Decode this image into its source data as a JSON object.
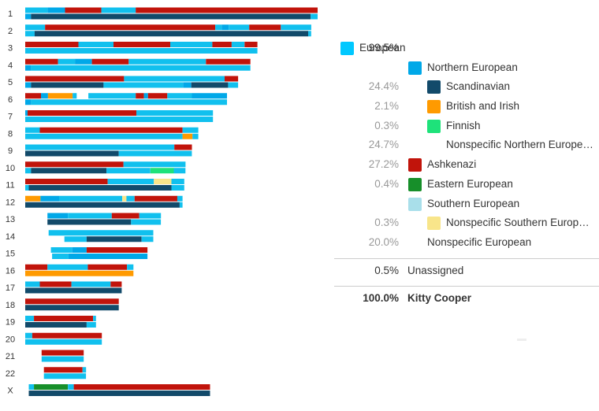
{
  "colors": {
    "european": "#00c8ff",
    "northern_european": "#00a8e8",
    "scandinavian": "#124a6a",
    "british_irish": "#ff9a00",
    "finnish": "#1ee27a",
    "ashkenazi": "#c1140b",
    "eastern_european": "#178f2a",
    "southern_european": "#a9dfea",
    "nonspecific_southern": "#f8e58a",
    "light_blue": "#11c0ee"
  },
  "legend": {
    "rows": [
      {
        "pct": "99.5%",
        "label": "European",
        "swatch": "european",
        "indent": 0
      },
      {
        "pct": "",
        "label": "Northern European",
        "swatch": "northern_european",
        "indent": 1
      },
      {
        "pct": "24.4%",
        "label": "Scandinavian",
        "swatch": "scandinavian",
        "indent": 2
      },
      {
        "pct": "2.1%",
        "label": "British and Irish",
        "swatch": "british_irish",
        "indent": 2
      },
      {
        "pct": "0.3%",
        "label": "Finnish",
        "swatch": "finnish",
        "indent": 2
      },
      {
        "pct": "24.7%",
        "label": "Nonspecific Northern European",
        "swatch": "",
        "indent": 2
      },
      {
        "pct": "27.2%",
        "label": "Ashkenazi",
        "swatch": "ashkenazi",
        "indent": 1
      },
      {
        "pct": "0.4%",
        "label": "Eastern European",
        "swatch": "eastern_european",
        "indent": 1
      },
      {
        "pct": "",
        "label": "Southern European",
        "swatch": "southern_european",
        "indent": 1
      },
      {
        "pct": "0.3%",
        "label": "Nonspecific Southern European",
        "swatch": "nonspecific_southern",
        "indent": 2
      },
      {
        "pct": "20.0%",
        "label": "Nonspecific European",
        "swatch": "",
        "indent": 1
      }
    ],
    "unassigned": {
      "pct": "0.5%",
      "label": "Unassigned"
    },
    "total": {
      "pct": "100.0%",
      "label": "Kitty Cooper"
    }
  },
  "chart_data": {
    "type": "chromosome_painting",
    "x_unit": "fraction of chromosome 1 length",
    "chromosomes": [
      {
        "label": "1",
        "start": 0.0,
        "length": 1.0,
        "top": [
          [
            "light_blue",
            0.0,
            0.076
          ],
          [
            "northern_european",
            0.076,
            0.136
          ],
          [
            "ashkenazi",
            0.136,
            0.26
          ],
          [
            "light_blue",
            0.26,
            0.378
          ],
          [
            "ashkenazi",
            0.378,
            1.0
          ]
        ],
        "bottom": [
          [
            "northern_european",
            0.0,
            0.02
          ],
          [
            "scandinavian",
            0.02,
            0.976
          ],
          [
            "light_blue",
            0.976,
            1.0
          ]
        ]
      },
      {
        "label": "2",
        "start": 0.0,
        "length": 0.978,
        "top": [
          [
            "light_blue",
            0.0,
            0.068
          ],
          [
            "ashkenazi",
            0.068,
            0.65
          ],
          [
            "light_blue",
            0.65,
            0.672
          ],
          [
            "northern_european",
            0.672,
            0.696
          ],
          [
            "light_blue",
            0.696,
            0.766
          ],
          [
            "ashkenazi",
            0.766,
            0.874
          ],
          [
            "light_blue",
            0.874,
            0.978
          ]
        ],
        "bottom": [
          [
            "light_blue",
            0.0,
            0.032
          ],
          [
            "scandinavian",
            0.032,
            0.968
          ],
          [
            "light_blue",
            0.968,
            0.978
          ]
        ]
      },
      {
        "label": "3",
        "start": 0.0,
        "length": 0.794,
        "top": [
          [
            "ashkenazi",
            0.0,
            0.182
          ],
          [
            "light_blue",
            0.182,
            0.302
          ],
          [
            "ashkenazi",
            0.302,
            0.496
          ],
          [
            "light_blue",
            0.496,
            0.64
          ],
          [
            "ashkenazi",
            0.64,
            0.706
          ],
          [
            "light_blue",
            0.706,
            0.75
          ],
          [
            "ashkenazi",
            0.75,
            0.794
          ]
        ],
        "bottom": [
          [
            "light_blue",
            0.0,
            0.794
          ]
        ]
      },
      {
        "label": "4",
        "start": 0.0,
        "length": 0.77,
        "top": [
          [
            "ashkenazi",
            0.0,
            0.112
          ],
          [
            "light_blue",
            0.112,
            0.17
          ],
          [
            "northern_european",
            0.17,
            0.228
          ],
          [
            "ashkenazi",
            0.228,
            0.354
          ],
          [
            "light_blue",
            0.354,
            0.618
          ],
          [
            "ashkenazi",
            0.618,
            0.77
          ]
        ],
        "bottom": [
          [
            "northern_european",
            0.0,
            0.02
          ],
          [
            "light_blue",
            0.02,
            0.77
          ]
        ]
      },
      {
        "label": "5",
        "start": 0.0,
        "length": 0.728,
        "top": [
          [
            "ashkenazi",
            0.0,
            0.338
          ],
          [
            "light_blue",
            0.338,
            0.682
          ],
          [
            "ashkenazi",
            0.682,
            0.728
          ]
        ],
        "bottom": [
          [
            "northern_european",
            0.0,
            0.02
          ],
          [
            "scandinavian",
            0.02,
            0.268
          ],
          [
            "light_blue",
            0.268,
            0.54
          ],
          [
            "northern_european",
            0.54,
            0.568
          ],
          [
            "scandinavian",
            0.568,
            0.694
          ],
          [
            "light_blue",
            0.694,
            0.728
          ]
        ]
      },
      {
        "label": "6",
        "start": 0.0,
        "length": 0.69,
        "top": [
          [
            "ashkenazi",
            0.0,
            0.054
          ],
          [
            "northern_european",
            0.054,
            0.078
          ],
          [
            "british_irish",
            0.078,
            0.162
          ],
          [
            "light_blue",
            0.162,
            0.176
          ],
          [
            "light_blue",
            0.216,
            0.378
          ],
          [
            "ashkenazi",
            0.378,
            0.406
          ],
          [
            "northern_european",
            0.406,
            0.42
          ],
          [
            "ashkenazi",
            0.42,
            0.486
          ],
          [
            "light_blue",
            0.486,
            0.57
          ],
          [
            "northern_european",
            0.57,
            0.69
          ]
        ],
        "bottom": [
          [
            "northern_european",
            0.0,
            0.02
          ],
          [
            "light_blue",
            0.02,
            0.69
          ]
        ]
      },
      {
        "label": "7",
        "start": 0.0,
        "length": 0.642,
        "top": [
          [
            "northern_european",
            0.0,
            0.008
          ],
          [
            "ashkenazi",
            0.008,
            0.38
          ],
          [
            "light_blue",
            0.38,
            0.642
          ]
        ],
        "bottom": [
          [
            "light_blue",
            0.0,
            0.642
          ]
        ]
      },
      {
        "label": "8",
        "start": 0.0,
        "length": 0.592,
        "top": [
          [
            "light_blue",
            0.0,
            0.05
          ],
          [
            "ashkenazi",
            0.05,
            0.538
          ],
          [
            "light_blue",
            0.538,
            0.592
          ]
        ],
        "bottom": [
          [
            "light_blue",
            0.0,
            0.538
          ],
          [
            "british_irish",
            0.538,
            0.572
          ],
          [
            "light_blue",
            0.572,
            0.592
          ]
        ]
      },
      {
        "label": "9",
        "start": 0.0,
        "length": 0.57,
        "top": [
          [
            "light_blue",
            0.0,
            0.51
          ],
          [
            "ashkenazi",
            0.51,
            0.57
          ]
        ],
        "bottom": [
          [
            "scandinavian",
            0.0,
            0.32
          ],
          [
            "light_blue",
            0.32,
            0.57
          ]
        ]
      },
      {
        "label": "10",
        "start": 0.0,
        "length": 0.548,
        "top": [
          [
            "ashkenazi",
            0.0,
            0.336
          ],
          [
            "light_blue",
            0.336,
            0.548
          ]
        ],
        "bottom": [
          [
            "light_blue",
            0.0,
            0.02
          ],
          [
            "scandinavian",
            0.02,
            0.278
          ],
          [
            "light_blue",
            0.278,
            0.428
          ],
          [
            "finnish",
            0.428,
            0.508
          ],
          [
            "light_blue",
            0.508,
            0.548
          ]
        ]
      },
      {
        "label": "11",
        "start": 0.0,
        "length": 0.544,
        "top": [
          [
            "ashkenazi",
            0.0,
            0.282
          ],
          [
            "light_blue",
            0.282,
            0.44
          ],
          [
            "nonspecific_southern",
            0.44,
            0.5
          ],
          [
            "light_blue",
            0.5,
            0.544
          ]
        ],
        "bottom": [
          [
            "light_blue",
            0.0,
            0.012
          ],
          [
            "scandinavian",
            0.012,
            0.5
          ],
          [
            "light_blue",
            0.5,
            0.544
          ]
        ]
      },
      {
        "label": "12",
        "start": 0.0,
        "length": 0.538,
        "top": [
          [
            "british_irish",
            0.0,
            0.052
          ],
          [
            "northern_european",
            0.052,
            0.116
          ],
          [
            "light_blue",
            0.116,
            0.332
          ],
          [
            "nonspecific_southern",
            0.332,
            0.346
          ],
          [
            "light_blue",
            0.346,
            0.374
          ],
          [
            "ashkenazi",
            0.374,
            0.52
          ],
          [
            "light_blue",
            0.52,
            0.538
          ]
        ],
        "bottom": [
          [
            "scandinavian",
            0.0,
            0.528
          ],
          [
            "light_blue",
            0.528,
            0.538
          ]
        ]
      },
      {
        "label": "13",
        "start": 0.076,
        "length": 0.388,
        "top": [
          [
            "northern_european",
            0.076,
            0.146
          ],
          [
            "light_blue",
            0.146,
            0.296
          ],
          [
            "ashkenazi",
            0.296,
            0.39
          ],
          [
            "light_blue",
            0.39,
            0.464
          ]
        ],
        "bottom": [
          [
            "scandinavian",
            0.076,
            0.362
          ],
          [
            "light_blue",
            0.362,
            0.464
          ]
        ]
      },
      {
        "label": "14",
        "start": 0.08,
        "length": 0.358,
        "top": [
          [
            "light_blue",
            0.08,
            0.438
          ]
        ],
        "bottom": [
          [
            "light_blue",
            0.134,
            0.21
          ],
          [
            "scandinavian",
            0.21,
            0.398
          ],
          [
            "light_blue",
            0.398,
            0.438
          ]
        ]
      },
      {
        "label": "15",
        "start": 0.088,
        "length": 0.33,
        "top": [
          [
            "light_blue",
            0.088,
            0.16
          ],
          [
            "northern_european",
            0.16,
            0.21
          ],
          [
            "ashkenazi",
            0.21,
            0.418
          ]
        ],
        "bottom": [
          [
            "light_blue",
            0.092,
            0.148
          ],
          [
            "northern_european",
            0.148,
            0.418
          ]
        ]
      },
      {
        "label": "16",
        "start": 0.0,
        "length": 0.37,
        "top": [
          [
            "ashkenazi",
            0.0,
            0.076
          ],
          [
            "light_blue",
            0.076,
            0.214
          ],
          [
            "ashkenazi",
            0.214,
            0.348
          ],
          [
            "light_blue",
            0.348,
            0.37
          ]
        ],
        "bottom": [
          [
            "british_irish",
            0.0,
            0.37
          ]
        ]
      },
      {
        "label": "17",
        "start": 0.0,
        "length": 0.33,
        "top": [
          [
            "light_blue",
            0.0,
            0.05
          ],
          [
            "ashkenazi",
            0.05,
            0.158
          ],
          [
            "light_blue",
            0.158,
            0.292
          ],
          [
            "ashkenazi",
            0.292,
            0.33
          ]
        ],
        "bottom": [
          [
            "scandinavian",
            0.0,
            0.33
          ]
        ]
      },
      {
        "label": "18",
        "start": 0.0,
        "length": 0.32,
        "top": [
          [
            "ashkenazi",
            0.0,
            0.32
          ]
        ],
        "bottom": [
          [
            "scandinavian",
            0.0,
            0.32
          ]
        ]
      },
      {
        "label": "19",
        "start": 0.0,
        "length": 0.242,
        "top": [
          [
            "light_blue",
            0.0,
            0.03
          ],
          [
            "ashkenazi",
            0.03,
            0.232
          ],
          [
            "light_blue",
            0.232,
            0.242
          ]
        ],
        "bottom": [
          [
            "scandinavian",
            0.0,
            0.21
          ],
          [
            "light_blue",
            0.21,
            0.242
          ]
        ]
      },
      {
        "label": "20",
        "start": 0.0,
        "length": 0.262,
        "top": [
          [
            "light_blue",
            0.0,
            0.024
          ],
          [
            "ashkenazi",
            0.024,
            0.262
          ]
        ],
        "bottom": [
          [
            "light_blue",
            0.0,
            0.262
          ]
        ]
      },
      {
        "label": "21",
        "start": 0.056,
        "length": 0.144,
        "top": [
          [
            "ashkenazi",
            0.056,
            0.2
          ]
        ],
        "bottom": [
          [
            "light_blue",
            0.056,
            0.2
          ]
        ]
      },
      {
        "label": "22",
        "start": 0.064,
        "length": 0.144,
        "top": [
          [
            "ashkenazi",
            0.064,
            0.196
          ],
          [
            "light_blue",
            0.196,
            0.208
          ]
        ],
        "bottom": [
          [
            "light_blue",
            0.064,
            0.208
          ]
        ]
      },
      {
        "label": "X",
        "start": 0.012,
        "length": 0.62,
        "top": [
          [
            "light_blue",
            0.012,
            0.03
          ],
          [
            "eastern_european",
            0.03,
            0.146
          ],
          [
            "light_blue",
            0.146,
            0.166
          ],
          [
            "ashkenazi",
            0.166,
            0.632
          ]
        ],
        "bottom": [
          [
            "scandinavian",
            0.012,
            0.632
          ]
        ]
      }
    ]
  }
}
